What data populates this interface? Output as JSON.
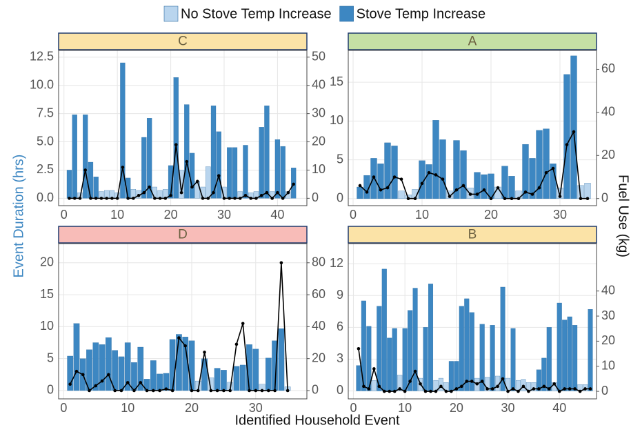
{
  "figure": {
    "legend": [
      {
        "name": "No Stove Temp Increase",
        "color": "#b9d5ee"
      },
      {
        "name": "Stove Temp Increase",
        "color": "#3d87c2"
      }
    ],
    "xlabel": "Identified Household Event",
    "ylabel": "Event Duration (hrs)",
    "y2label": "Fuel Use (kg)"
  },
  "chart_data": [
    {
      "type": "bar_line",
      "title": "C",
      "strip_color": "#fbe3a7",
      "x": [
        1,
        2,
        3,
        4,
        5,
        6,
        7,
        8,
        9,
        10,
        11,
        12,
        13,
        14,
        15,
        16,
        17,
        18,
        19,
        20,
        21,
        22,
        23,
        24,
        25,
        26,
        27,
        28,
        29,
        30,
        31,
        32,
        33,
        34,
        35,
        36,
        37,
        38,
        39,
        40,
        41,
        42,
        43
      ],
      "durations": [
        2.5,
        7.4,
        0.5,
        7.4,
        3.2,
        1.9,
        0.6,
        0.7,
        0.7,
        0.5,
        12.0,
        1.8,
        0.8,
        0.7,
        5.4,
        7.1,
        1.0,
        0.7,
        0.8,
        2.9,
        10.7,
        2.5,
        8.3,
        4.0,
        1.5,
        1.0,
        2.8,
        8.2,
        5.9,
        1.0,
        4.5,
        4.5,
        0.6,
        4.7,
        0.5,
        0.6,
        6.3,
        8.2,
        0.6,
        5.2,
        4.6,
        0.6,
        2.7
      ],
      "stove_temp_increase": [
        true,
        true,
        false,
        true,
        true,
        true,
        false,
        false,
        false,
        false,
        true,
        true,
        false,
        false,
        true,
        true,
        false,
        false,
        false,
        true,
        true,
        false,
        true,
        true,
        false,
        false,
        false,
        true,
        true,
        false,
        true,
        true,
        false,
        true,
        false,
        false,
        true,
        true,
        false,
        true,
        true,
        false,
        true
      ],
      "fuel_use": [
        0,
        0,
        0,
        10,
        0,
        0,
        0,
        0,
        0,
        0,
        11,
        0,
        0,
        1,
        2,
        4,
        0,
        0,
        0,
        1,
        19,
        2,
        13,
        4,
        6,
        0,
        0,
        2,
        8,
        0,
        0,
        0,
        0,
        1,
        0,
        0,
        1,
        2,
        0,
        2,
        0,
        2,
        5
      ],
      "xlim": [
        -1,
        45.5
      ],
      "xticks": [
        0,
        10,
        20,
        30,
        40
      ],
      "ylim": [
        -0.65,
        13.1
      ],
      "yticks": [
        {
          "value": 0,
          "label": "0.0"
        },
        2.5,
        {
          "value": 5,
          "label": "5.0"
        },
        7.5,
        {
          "value": 10,
          "label": "10.0"
        },
        12.5
      ],
      "y2lim": [
        -2.6,
        52.4
      ],
      "y2ticks": [
        0,
        10,
        20,
        30,
        40,
        50
      ]
    },
    {
      "type": "bar_line",
      "title": "A",
      "strip_color": "#c5e0a5",
      "x": [
        1,
        2,
        3,
        4,
        5,
        6,
        7,
        8,
        9,
        10,
        11,
        12,
        13,
        14,
        15,
        16,
        17,
        18,
        19,
        20,
        21,
        22,
        23,
        24,
        25,
        26,
        27,
        28,
        29,
        30,
        31,
        32,
        33,
        34
      ],
      "durations": [
        1.5,
        3.0,
        5.2,
        4.5,
        7.2,
        6.8,
        1.0,
        0.5,
        1.2,
        4.9,
        4.4,
        10.1,
        7.6,
        1.0,
        7.5,
        6.2,
        1.4,
        3.4,
        3.1,
        3.2,
        1.5,
        4.2,
        2.9,
        1.0,
        7.0,
        5.2,
        8.8,
        9.0,
        4.5,
        1.4,
        16.0,
        18.4,
        1.7,
        2.0
      ],
      "stove_temp_increase": [
        true,
        true,
        true,
        true,
        true,
        true,
        false,
        false,
        false,
        true,
        true,
        true,
        true,
        false,
        true,
        true,
        false,
        true,
        true,
        true,
        false,
        true,
        true,
        false,
        true,
        true,
        true,
        true,
        true,
        false,
        true,
        true,
        false,
        false
      ],
      "fuel_use": [
        6,
        3,
        10,
        4,
        5,
        10,
        9,
        0,
        0,
        7,
        12,
        11,
        9,
        1,
        4,
        6,
        2,
        2,
        4,
        0,
        5,
        0,
        0,
        0,
        3,
        2,
        5,
        12,
        14,
        1,
        25,
        31,
        0,
        0
      ],
      "xlim": [
        -0.7,
        35.3
      ],
      "xticks": [
        0,
        10,
        20,
        30
      ],
      "ylim": [
        -0.9,
        19.1
      ],
      "yticks": [
        0,
        5,
        10,
        15
      ],
      "y2lim": [
        -3.3,
        68.8
      ],
      "y2ticks": [
        0,
        20,
        40,
        60
      ]
    },
    {
      "type": "bar_line",
      "title": "D",
      "strip_color": "#f8bcb8",
      "x": [
        1,
        2,
        3,
        4,
        5,
        6,
        7,
        8,
        9,
        10,
        11,
        12,
        13,
        14,
        15,
        16,
        17,
        18,
        19,
        20,
        21,
        22,
        23,
        24,
        25,
        26,
        27,
        28,
        29,
        30,
        31,
        32,
        33,
        34,
        35
      ],
      "durations": [
        5.4,
        10.5,
        5.0,
        6.4,
        7.5,
        7.2,
        8.3,
        6.3,
        5.3,
        7.5,
        4.4,
        6.8,
        1.8,
        4.7,
        2.6,
        2.7,
        8.0,
        8.8,
        8.4,
        7.8,
        1.5,
        5.0,
        2.0,
        3.5,
        3.2,
        1.3,
        3.8,
        4.0,
        7.2,
        6.5,
        1.0,
        5.1,
        7.8,
        9.7,
        0.6
      ],
      "stove_temp_increase": [
        true,
        true,
        true,
        true,
        true,
        true,
        true,
        true,
        true,
        true,
        true,
        true,
        true,
        true,
        true,
        true,
        true,
        true,
        true,
        true,
        false,
        true,
        false,
        true,
        true,
        false,
        true,
        true,
        true,
        true,
        false,
        true,
        true,
        true,
        false
      ],
      "fuel_use": [
        4,
        12,
        10,
        0,
        3,
        6,
        10,
        0,
        0,
        5,
        0,
        5,
        0,
        0,
        0,
        1,
        0,
        33,
        28,
        0,
        0,
        24,
        0,
        0,
        0,
        0,
        29,
        42,
        0,
        0,
        0,
        0,
        0,
        80,
        0
      ],
      "xlim": [
        -0.8,
        38
      ],
      "xticks": [
        0,
        10,
        20,
        30
      ],
      "ylim": [
        -1.3,
        23.0
      ],
      "yticks": [
        0,
        5,
        10,
        15,
        20
      ],
      "y2lim": [
        -5.2,
        92
      ],
      "y2ticks": [
        0,
        20,
        40,
        60,
        80
      ]
    },
    {
      "type": "bar_line",
      "title": "B",
      "strip_color": "#fbe3a7",
      "x": [
        1,
        2,
        3,
        4,
        5,
        6,
        7,
        8,
        9,
        10,
        11,
        12,
        13,
        14,
        15,
        16,
        17,
        18,
        19,
        20,
        21,
        22,
        23,
        24,
        25,
        26,
        27,
        28,
        29,
        30,
        31,
        32,
        33,
        34,
        35,
        36,
        37,
        38,
        39,
        40,
        41,
        42,
        43,
        44,
        45,
        46
      ],
      "durations": [
        2.4,
        8.5,
        6.1,
        1.0,
        8.0,
        11.5,
        5.0,
        5.9,
        1.5,
        5.9,
        7.6,
        9.7,
        1.2,
        6.0,
        10.1,
        1.0,
        1.2,
        0.8,
        2.8,
        2.8,
        8.0,
        8.7,
        7.4,
        1.2,
        6.3,
        1.3,
        6.2,
        1.4,
        9.8,
        1.2,
        5.9,
        1.0,
        1.1,
        0.8,
        0.8,
        2.0,
        3.1,
        6.0,
        0.8,
        8.3,
        6.7,
        7.0,
        6.2,
        0.6,
        0.6,
        7.7
      ],
      "stove_temp_increase": [
        true,
        true,
        true,
        false,
        true,
        true,
        true,
        true,
        false,
        true,
        true,
        true,
        false,
        true,
        true,
        false,
        false,
        false,
        true,
        true,
        true,
        true,
        true,
        false,
        true,
        false,
        true,
        false,
        true,
        false,
        true,
        false,
        false,
        false,
        false,
        true,
        true,
        true,
        false,
        true,
        true,
        true,
        true,
        false,
        false,
        true
      ],
      "fuel_use": [
        17,
        2,
        1,
        9,
        2,
        0,
        0,
        0,
        1,
        0,
        4,
        8,
        3,
        0,
        0,
        0,
        2,
        0,
        0,
        1,
        2,
        4,
        4,
        3,
        4,
        1,
        1,
        2,
        5,
        0,
        1,
        0,
        2,
        0,
        1,
        1,
        2,
        1,
        3,
        0,
        1,
        1,
        1,
        0,
        1,
        1
      ],
      "xlim": [
        -1,
        47.2
      ],
      "xticks": [
        0,
        10,
        20,
        30,
        40
      ],
      "ylim": [
        -0.75,
        13.9
      ],
      "yticks": [
        0,
        3,
        6,
        9,
        12
      ],
      "y2lim": [
        -3,
        58.9
      ],
      "y2ticks": [
        0,
        10,
        20,
        30,
        40
      ]
    }
  ]
}
